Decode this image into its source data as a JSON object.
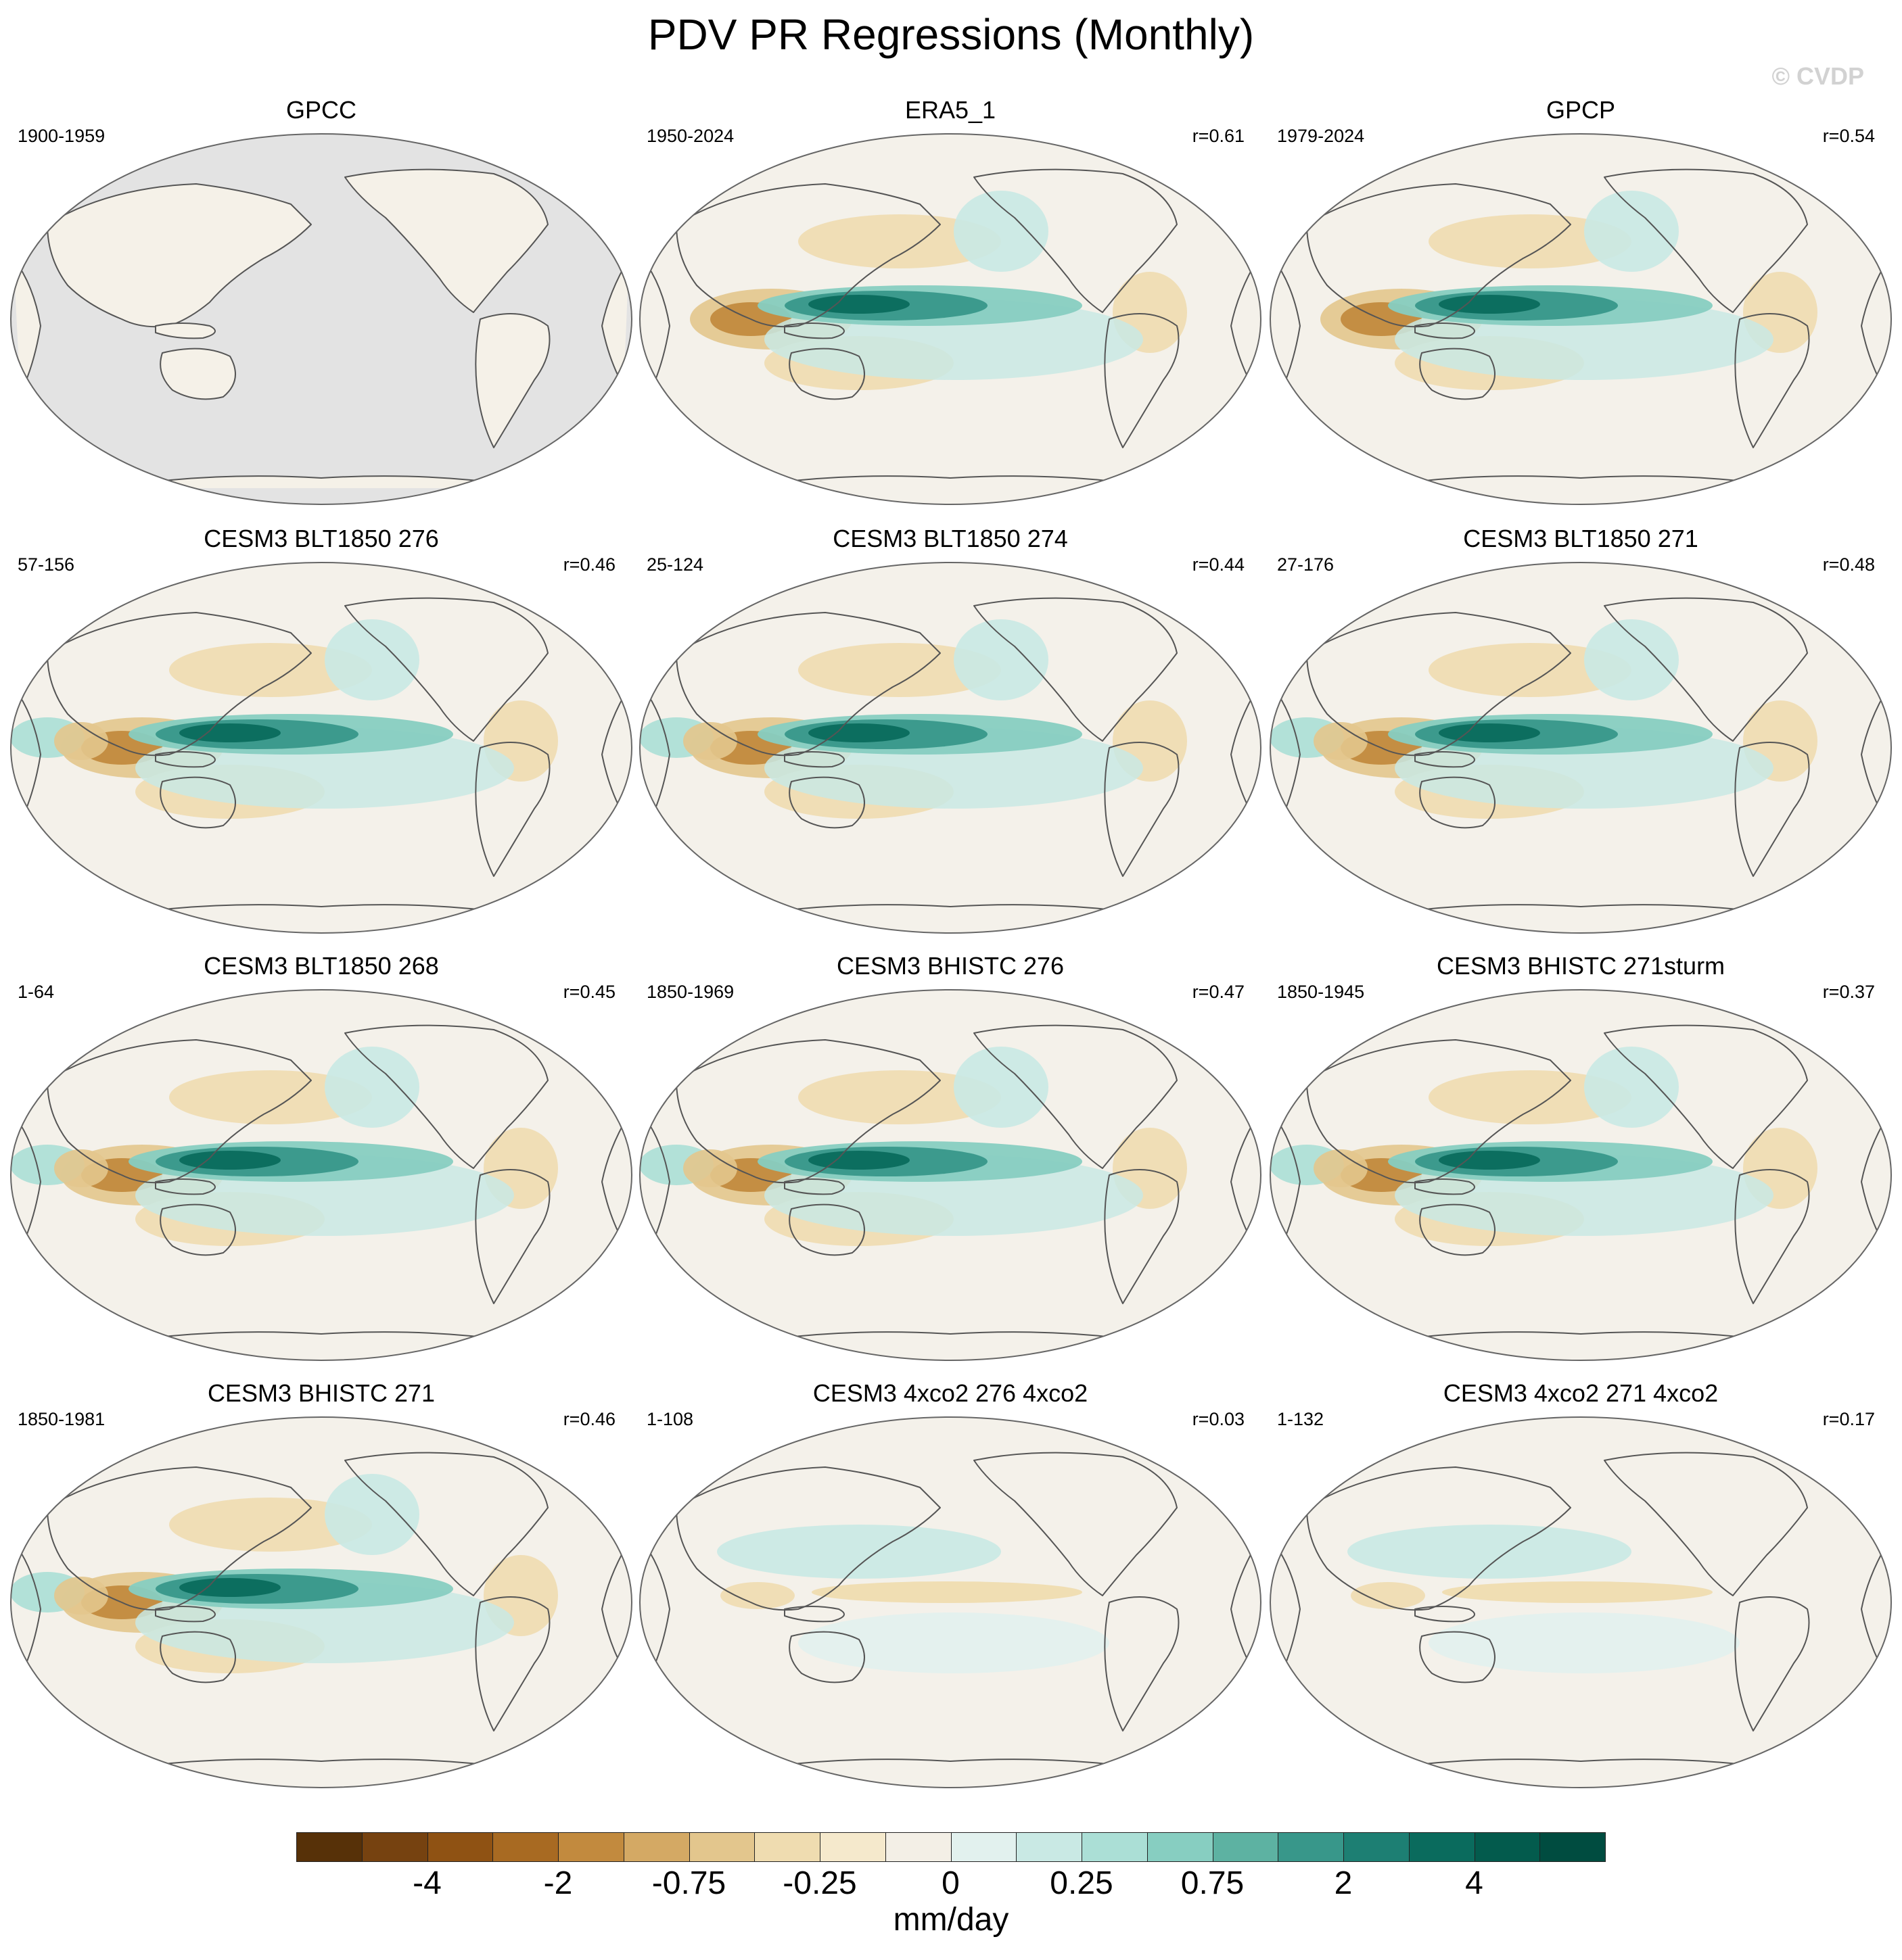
{
  "title": "PDV PR Regressions (Monthly)",
  "watermark": "© CVDP",
  "colors": {
    "land_mask": "#e3e3e3",
    "neutral": "#f4f1ea",
    "coastline": "#555555",
    "map_border": "#666666"
  },
  "chart_data": {
    "type": "heatmap",
    "projection": "Robinson, Pacific-centered",
    "variable": "PR regression on PDV",
    "colorbar": {
      "unit": "mm/day",
      "tick_labels": [
        "-4",
        "-2",
        "-0.75",
        "-0.25",
        "0",
        "0.25",
        "0.75",
        "2",
        "4"
      ],
      "colors": [
        "#573108",
        "#764210",
        "#8f5213",
        "#a86a22",
        "#c28a3e",
        "#d4a964",
        "#e3c68d",
        "#efdcb0",
        "#f5e9cc",
        "#f3efe6",
        "#e2f1ee",
        "#c9e9e4",
        "#abdfd6",
        "#87cec1",
        "#5db2a2",
        "#38978a",
        "#1d7f73",
        "#0a6b5d",
        "#035b4d",
        "#004c40"
      ]
    },
    "panels": [
      {
        "title": "GPCC",
        "period": "1900-1959",
        "r": "",
        "pattern": "gpcc"
      },
      {
        "title": "ERA5_1",
        "period": "1950-2024",
        "r": "r=0.61",
        "pattern": "obs"
      },
      {
        "title": "GPCP",
        "period": "1979-2024",
        "r": "r=0.54",
        "pattern": "obs"
      },
      {
        "title": "CESM3 BLT1850 276",
        "period": "57-156",
        "r": "r=0.46",
        "pattern": "model"
      },
      {
        "title": "CESM3 BLT1850 274",
        "period": "25-124",
        "r": "r=0.44",
        "pattern": "model"
      },
      {
        "title": "CESM3 BLT1850 271",
        "period": "27-176",
        "r": "r=0.48",
        "pattern": "model"
      },
      {
        "title": "CESM3 BLT1850 268",
        "period": "1-64",
        "r": "r=0.45",
        "pattern": "model"
      },
      {
        "title": "CESM3 BHISTC 276",
        "period": "1850-1969",
        "r": "r=0.47",
        "pattern": "model"
      },
      {
        "title": "CESM3 BHISTC 271sturm",
        "period": "1850-1945",
        "r": "r=0.37",
        "pattern": "model"
      },
      {
        "title": "CESM3 BHISTC 271",
        "period": "1850-1981",
        "r": "r=0.46",
        "pattern": "model"
      },
      {
        "title": "CESM3 4xco2 276 4xco2",
        "period": "1-108",
        "r": "r=0.03",
        "pattern": "weak"
      },
      {
        "title": "CESM3 4xco2 271 4xco2",
        "period": "1-132",
        "r": "r=0.17",
        "pattern": "weak"
      }
    ]
  }
}
